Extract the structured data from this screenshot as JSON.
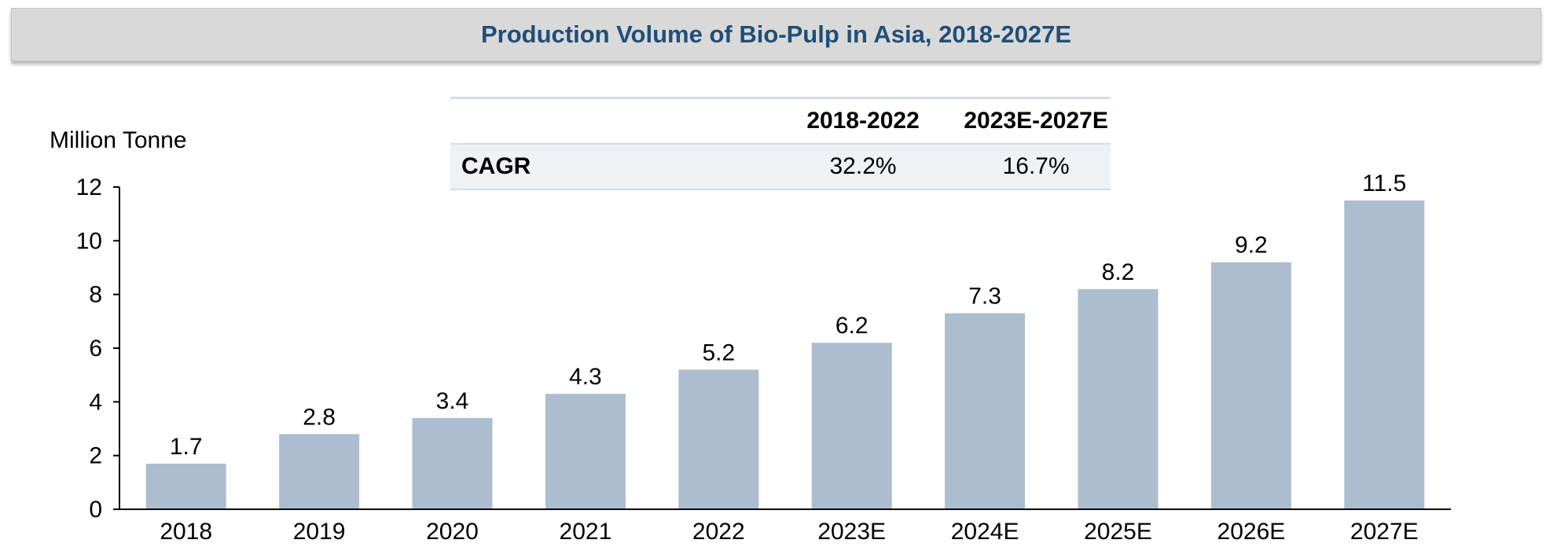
{
  "title": "Production Volume of Bio-Pulp in Asia, 2018-2027E",
  "cagr_table": {
    "headers": [
      "",
      "2018-2022",
      "2023E-2027E"
    ],
    "row_label": "CAGR",
    "values": [
      "32.2%",
      "16.7%"
    ]
  },
  "chart_data": {
    "type": "bar",
    "ylabel": "Million Tonne",
    "categories": [
      "2018",
      "2019",
      "2020",
      "2021",
      "2022",
      "2023E",
      "2024E",
      "2025E",
      "2026E",
      "2027E"
    ],
    "values": [
      1.7,
      2.8,
      3.4,
      4.3,
      5.2,
      6.2,
      7.3,
      8.2,
      9.2,
      11.5
    ],
    "data_labels": [
      "1.7",
      "2.8",
      "3.4",
      "4.3",
      "5.2",
      "6.2",
      "7.3",
      "8.2",
      "9.2",
      "11.5"
    ],
    "ylim": [
      0,
      12
    ],
    "yticks": [
      0,
      2,
      4,
      6,
      8,
      10,
      12
    ],
    "ytick_labels": [
      "0",
      "2",
      "4",
      "6",
      "8",
      "10",
      "12"
    ],
    "grid": false,
    "legend": "none",
    "bar_color": "#adbdd0",
    "axis_color": "#000000",
    "title_color": "#1f4e79",
    "banner_color": "#d9d9d9"
  }
}
